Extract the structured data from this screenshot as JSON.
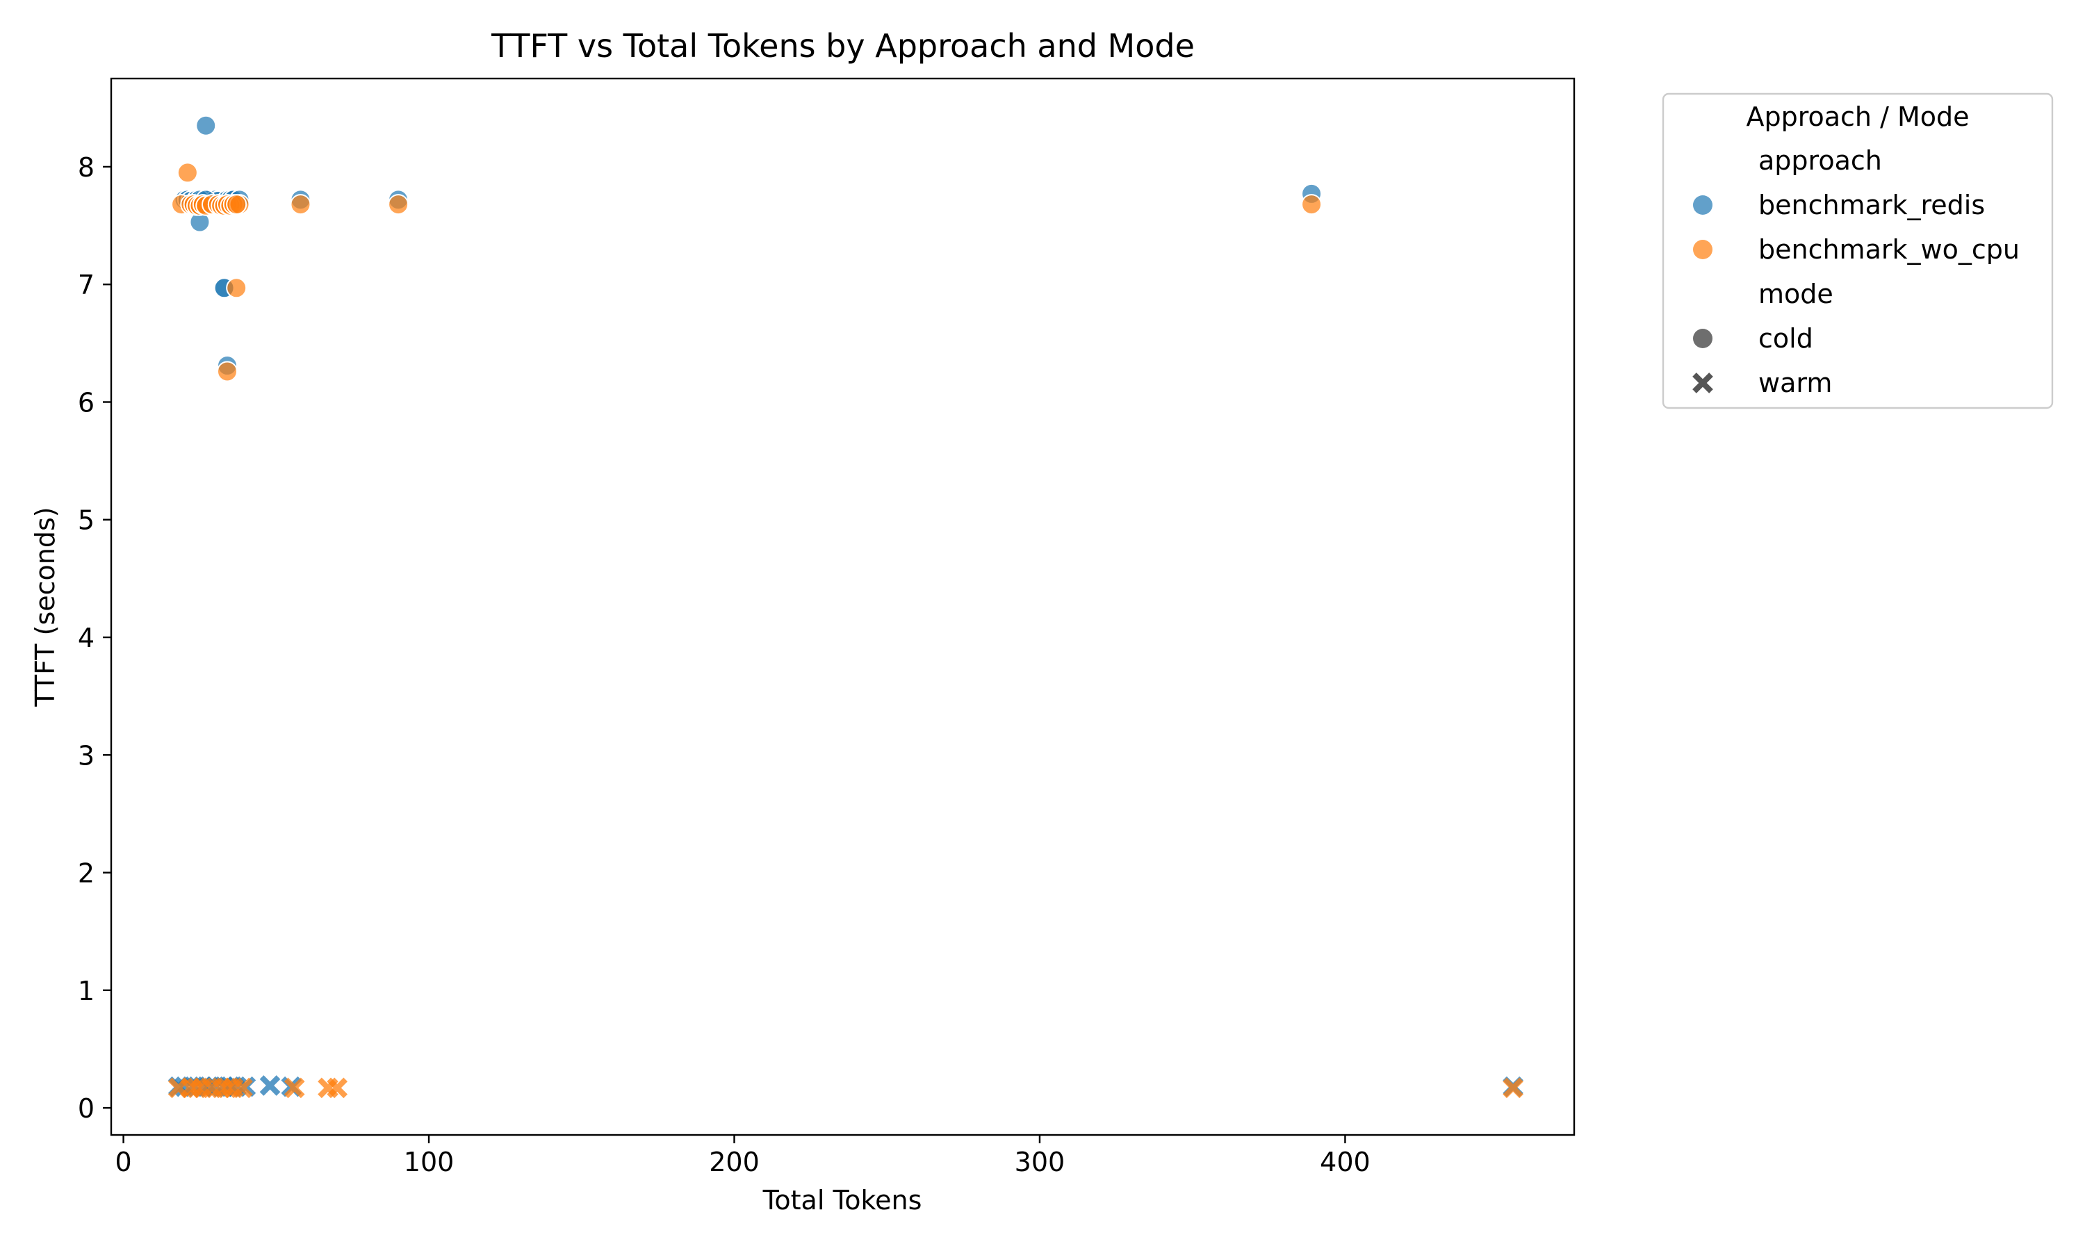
{
  "chart_data": {
    "type": "scatter",
    "title": "TTFT vs Total Tokens by Approach and Mode",
    "xlabel": "Total Tokens",
    "ylabel": "TTFT (seconds)",
    "xlim": [
      -4,
      475
    ],
    "ylim": [
      -0.23,
      8.75
    ],
    "xticks": [
      0,
      100,
      200,
      300,
      400
    ],
    "yticks": [
      0,
      1,
      2,
      3,
      4,
      5,
      6,
      7,
      8
    ],
    "grid": false,
    "legend": {
      "title": "Approach / Mode",
      "placement": "outside-top-right",
      "hue_header": "approach",
      "style_header": "mode",
      "hue_entries": [
        "benchmark_redis",
        "benchmark_wo_cpu"
      ],
      "style_entries": [
        "cold",
        "warm"
      ]
    },
    "colors": {
      "benchmark_redis": "#1f77b4",
      "benchmark_wo_cpu": "#ff7f0e",
      "style_key": "#555555"
    },
    "series": [
      {
        "name": "benchmark_redis",
        "mode": "cold",
        "marker": "circle",
        "x": [
          20,
          21,
          22,
          24,
          25,
          26,
          27,
          28,
          30,
          31,
          33,
          34,
          35,
          36,
          38,
          25,
          27,
          33,
          34,
          58,
          90,
          389
        ],
        "y": [
          7.72,
          7.72,
          7.71,
          7.72,
          7.53,
          7.72,
          8.35,
          7.72,
          7.72,
          7.71,
          6.97,
          7.72,
          7.72,
          7.72,
          7.72,
          7.72,
          7.72,
          6.97,
          6.31,
          7.72,
          7.72,
          7.77
        ]
      },
      {
        "name": "benchmark_redis",
        "mode": "warm",
        "marker": "x",
        "x": [
          18,
          20,
          23,
          26,
          28,
          30,
          33,
          35,
          37,
          40,
          48,
          55,
          455
        ],
        "y": [
          0.18,
          0.18,
          0.18,
          0.18,
          0.18,
          0.18,
          0.18,
          0.18,
          0.18,
          0.18,
          0.19,
          0.18,
          0.18
        ]
      },
      {
        "name": "benchmark_wo_cpu",
        "mode": "cold",
        "marker": "circle",
        "x": [
          19,
          21,
          22,
          23,
          24,
          25,
          26,
          27,
          29,
          31,
          32,
          33,
          34,
          35,
          36,
          37,
          38,
          37,
          34,
          58,
          90,
          389
        ],
        "y": [
          7.68,
          7.95,
          7.68,
          7.68,
          7.67,
          7.67,
          7.68,
          7.67,
          7.68,
          7.68,
          7.67,
          7.67,
          7.68,
          7.67,
          7.68,
          6.97,
          7.68,
          7.68,
          6.26,
          7.68,
          7.68,
          7.68
        ]
      },
      {
        "name": "benchmark_wo_cpu",
        "mode": "warm",
        "marker": "x",
        "x": [
          18,
          22,
          24,
          26,
          29,
          32,
          34,
          36,
          39,
          56,
          67,
          70,
          455
        ],
        "y": [
          0.17,
          0.17,
          0.17,
          0.17,
          0.17,
          0.17,
          0.17,
          0.17,
          0.17,
          0.17,
          0.17,
          0.17,
          0.17
        ]
      }
    ]
  }
}
